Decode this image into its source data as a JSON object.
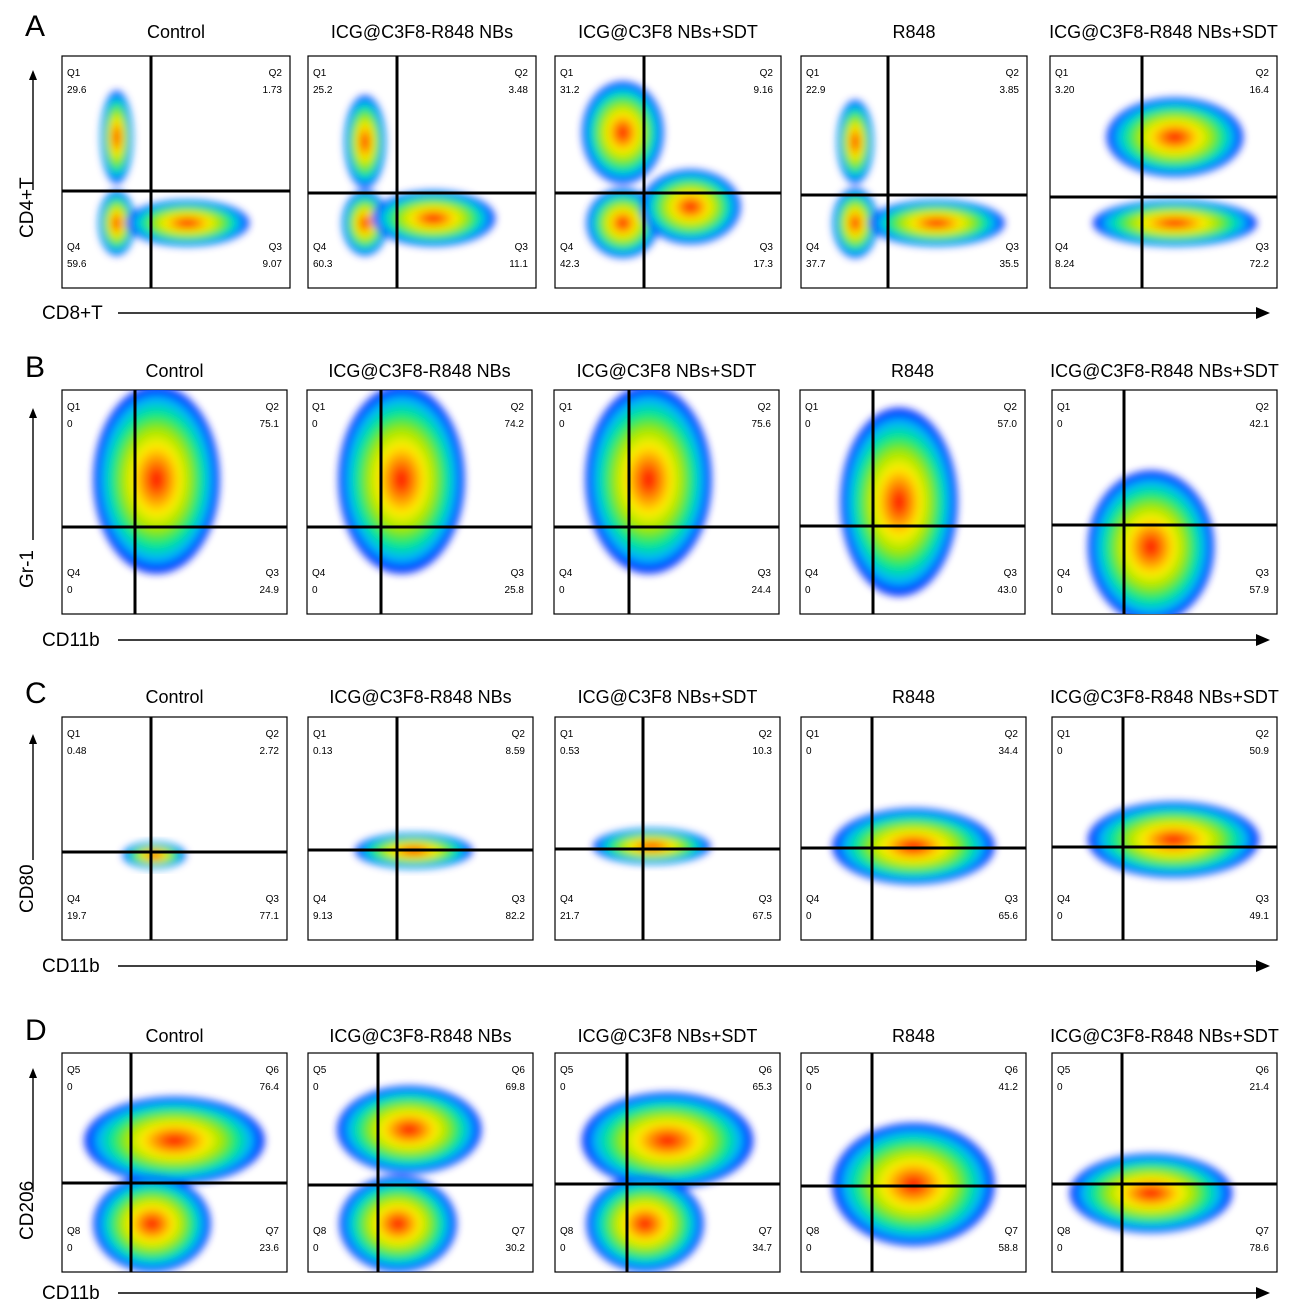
{
  "chart_data": [
    {
      "type": "heatmap",
      "panel_label": "A",
      "xlabel": "CD8+T",
      "ylabel": "CD4+T",
      "plots": [
        {
          "title": "Control",
          "quadrants": {
            "Q1": "29.6",
            "Q2": "1.73",
            "Q3": "9.07",
            "Q4": "59.6"
          }
        },
        {
          "title": "ICG@C3F8-R848 NBs",
          "quadrants": {
            "Q1": "25.2",
            "Q2": "3.48",
            "Q3": "11.1",
            "Q4": "60.3"
          }
        },
        {
          "title": "ICG@C3F8 NBs+SDT",
          "quadrants": {
            "Q1": "31.2",
            "Q2": "9.16",
            "Q3": "17.3",
            "Q4": "42.3"
          }
        },
        {
          "title": "R848",
          "quadrants": {
            "Q1": "22.9",
            "Q2": "3.85",
            "Q3": "35.5",
            "Q4": "37.7"
          }
        },
        {
          "title": "ICG@C3F8-R848 NBs+SDT",
          "quadrants": {
            "Q1": "3.20",
            "Q2": "16.4",
            "Q3": "72.2",
            "Q4": "8.24"
          }
        }
      ]
    },
    {
      "type": "heatmap",
      "panel_label": "B",
      "xlabel": "CD11b",
      "ylabel": "Gr-1",
      "plots": [
        {
          "title": "Control",
          "quadrants": {
            "Q1": "0",
            "Q2": "75.1",
            "Q3": "24.9",
            "Q4": "0"
          }
        },
        {
          "title": "ICG@C3F8-R848 NBs",
          "quadrants": {
            "Q1": "0",
            "Q2": "74.2",
            "Q3": "25.8",
            "Q4": "0"
          }
        },
        {
          "title": "ICG@C3F8 NBs+SDT",
          "quadrants": {
            "Q1": "0",
            "Q2": "75.6",
            "Q3": "24.4",
            "Q4": "0"
          }
        },
        {
          "title": "R848",
          "quadrants": {
            "Q1": "0",
            "Q2": "57.0",
            "Q3": "43.0",
            "Q4": "0"
          }
        },
        {
          "title": "ICG@C3F8-R848 NBs+SDT",
          "quadrants": {
            "Q1": "0",
            "Q2": "42.1",
            "Q3": "57.9",
            "Q4": "0"
          }
        }
      ]
    },
    {
      "type": "heatmap",
      "panel_label": "C",
      "xlabel": "CD11b",
      "ylabel": "CD80",
      "plots": [
        {
          "title": "Control",
          "quadrants": {
            "Q1": "0.48",
            "Q2": "2.72",
            "Q3": "77.1",
            "Q4": "19.7"
          }
        },
        {
          "title": "ICG@C3F8-R848 NBs",
          "quadrants": {
            "Q1": "0.13",
            "Q2": "8.59",
            "Q3": "82.2",
            "Q4": "9.13"
          }
        },
        {
          "title": "ICG@C3F8 NBs+SDT",
          "quadrants": {
            "Q1": "0.53",
            "Q2": "10.3",
            "Q3": "67.5",
            "Q4": "21.7"
          }
        },
        {
          "title": "R848",
          "quadrants": {
            "Q1": "0",
            "Q2": "34.4",
            "Q3": "65.6",
            "Q4": "0"
          }
        },
        {
          "title": "ICG@C3F8-R848 NBs+SDT",
          "quadrants": {
            "Q1": "0",
            "Q2": "50.9",
            "Q3": "49.1",
            "Q4": "0"
          }
        }
      ]
    },
    {
      "type": "heatmap",
      "panel_label": "D",
      "xlabel": "CD11b",
      "ylabel": "CD206",
      "plots": [
        {
          "title": "Control",
          "quadrants": {
            "Q5": "0",
            "Q6": "76.4",
            "Q7": "23.6",
            "Q8": "0"
          }
        },
        {
          "title": "ICG@C3F8-R848 NBs",
          "quadrants": {
            "Q5": "0",
            "Q6": "69.8",
            "Q7": "30.2",
            "Q8": "0"
          }
        },
        {
          "title": "ICG@C3F8 NBs+SDT",
          "quadrants": {
            "Q5": "0",
            "Q6": "65.3",
            "Q7": "34.7",
            "Q8": "0"
          }
        },
        {
          "title": "R848",
          "quadrants": {
            "Q5": "0",
            "Q6": "41.2",
            "Q7": "58.8",
            "Q8": "0"
          }
        },
        {
          "title": "ICG@C3F8-R848 NBs+SDT",
          "quadrants": {
            "Q5": "0",
            "Q6": "21.4",
            "Q7": "78.6",
            "Q8": "0"
          }
        }
      ]
    }
  ],
  "density_colormap": [
    "#0000ff",
    "#00b4ff",
    "#00e890",
    "#9be600",
    "#ffee00",
    "#ff8000",
    "#ff0000"
  ]
}
